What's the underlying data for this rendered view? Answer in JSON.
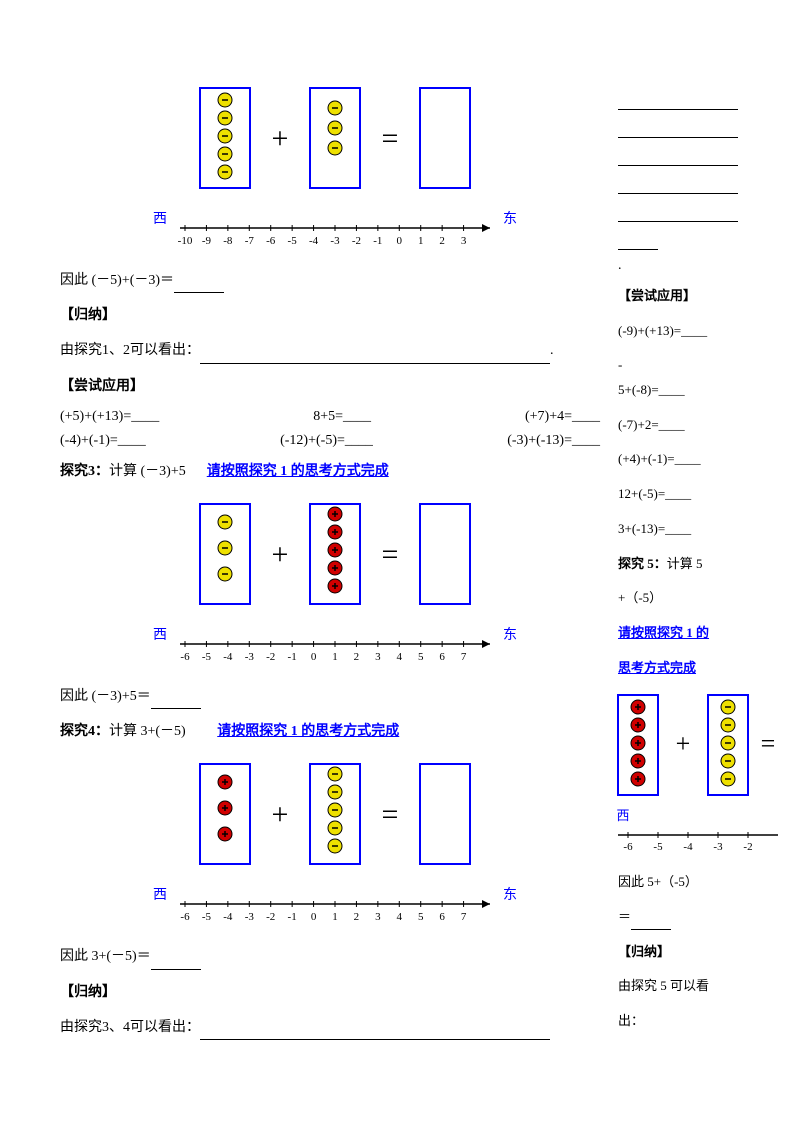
{
  "fig1": {
    "box_stroke": "#0000ff",
    "box_fill": "#ffffff",
    "yellow_fill": "#eee000",
    "yellow_stroke": "#000000",
    "box1_dots": 5,
    "box2_dots": 3,
    "west": "西",
    "east": "东",
    "ticks": [
      "-10",
      "-9",
      "-8",
      "-7",
      "-6",
      "-5",
      "-4",
      "-3",
      "-2",
      "-1",
      "0",
      "1",
      "2",
      "3"
    ]
  },
  "p_therefore1": "因此 (－5)+(－3)＝",
  "h_guina": "【归纳】",
  "p_guina12": "由探究1、2可以看出：",
  "h_try": "【尝试应用】",
  "try1": {
    "a": "(+5)+(+13)=____",
    "b": "8+5=____",
    "c": "(+7)+4=____",
    "d": "(-4)+(-1)=____",
    "e": "(-12)+(-5)=____",
    "f": "(-3)+(-13)=____"
  },
  "p_tj3": "探究3：",
  "p_tj3b": "计算 (－3)+5",
  "instr": "请按照探究 1 的思考方式完成",
  "fig2": {
    "box_stroke": "#0000ff",
    "yellow_fill": "#eee000",
    "red_fill": "#d00000",
    "left_dots": 3,
    "right_dots": 5,
    "left_color": "yellow",
    "right_color": "red",
    "west": "西",
    "east": "东",
    "ticks": [
      "-6",
      "-5",
      "-4",
      "-3",
      "-2",
      "-1",
      "0",
      "1",
      "2",
      "3",
      "4",
      "5",
      "6",
      "7"
    ]
  },
  "p_therefore2": "因此 (－3)+5＝",
  "p_tj4": "探究4：",
  "p_tj4b": "计算 3+(－5)",
  "fig3": {
    "box_stroke": "#0000ff",
    "yellow_fill": "#eee000",
    "red_fill": "#d00000",
    "left_dots": 3,
    "right_dots": 5,
    "left_color": "red",
    "right_color": "yellow",
    "west": "西",
    "east": "东",
    "ticks": [
      "-6",
      "-5",
      "-4",
      "-3",
      "-2",
      "-1",
      "0",
      "1",
      "2",
      "3",
      "4",
      "5",
      "6",
      "7"
    ]
  },
  "p_therefore3": "因此 3+(－5)＝",
  "p_guina34": "由探究3、4可以看出：",
  "side": {
    "h_try": "【尝试应用】",
    "l1": "(-9)+(+13)=____",
    "l2a": "-",
    "l2b": "5+(-8)=____",
    "l3": "(-7)+2=____",
    "l4": "(+4)+(-1)=____",
    "l5": "12+(-5)=____",
    "l6": "3+(-13)=____",
    "p_tj5": "探究 5：",
    "p_tj5b": "计算 5",
    "p_tj5c": "+（-5）",
    "instr1": "请按照探究 1 的",
    "instr2": "思考方式完成",
    "west": "西",
    "ticks": [
      "-6",
      "-5",
      "-4",
      "-3",
      "-2"
    ],
    "p_therefore": "因此 5+（-5）",
    "eq": "＝",
    "h_guina": "【归纳】",
    "p_guina": "由探究 5 可以看",
    "p_chu": "出："
  },
  "fig5": {
    "box_stroke": "#0000ff",
    "red_fill": "#d00000",
    "yellow_fill": "#eee000",
    "left_dots": 5,
    "right_dots": 5
  }
}
